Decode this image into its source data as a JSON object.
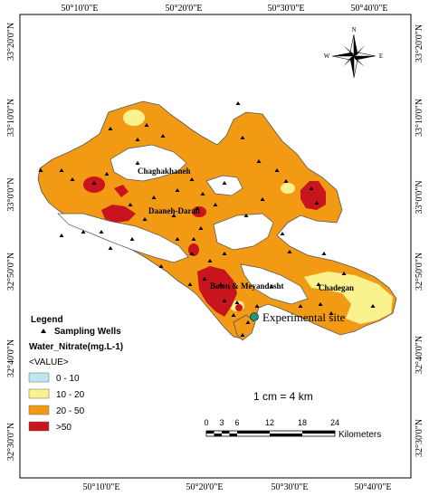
{
  "map": {
    "top_ticks": [
      "50°10'0\"E",
      "50°20'0\"E",
      "50°30'0\"E",
      "50°40'0\"E"
    ],
    "bottom_ticks": [
      "50°10'0\"E",
      "50°20'0\"E",
      "50°30'0\"E",
      "50°40'0\"E"
    ],
    "left_ticks": [
      "33°20'0\"N",
      "33°10'0\"N",
      "33°0'0\"N",
      "32°50'0\"N",
      "32°40'0\"N",
      "32°30'0\"N"
    ],
    "right_ticks": [
      "33°20'0\"N",
      "33°10'0\"N",
      "33°0'0\"N",
      "32°50'0\"N",
      "32°40'0\"N",
      "32°30'0\"N"
    ]
  },
  "places": {
    "chaghakhaneh": "Chaghakhaneh",
    "daran": "Daaneh-Daran",
    "boien": "Boien & Meyandasht",
    "chadegan": "Chadegan",
    "experimental": "Experimental site"
  },
  "compass": {
    "n": "N",
    "w": "W",
    "e": "E"
  },
  "legend": {
    "title": "Legend",
    "wells_label": "Sampling Wells",
    "variable": "Water_Nitrate(mg.L-1)",
    "value_header": "<VALUE>",
    "classes": [
      {
        "label": "0 - 10",
        "color": "#bfe6ee"
      },
      {
        "label": "10 - 20",
        "color": "#faf28e"
      },
      {
        "label": "20 - 50",
        "color": "#f39a14"
      },
      {
        "label": ">50",
        "color": "#c8141c"
      }
    ]
  },
  "scale": {
    "ratio": "1 cm = 4 km",
    "ticks": [
      "0",
      "3",
      "6",
      "12",
      "18",
      "24"
    ],
    "unit": "Kilometers"
  },
  "colors": {
    "frame": "#000000",
    "outline": "#555555",
    "experimental": "#1a9a7a"
  }
}
